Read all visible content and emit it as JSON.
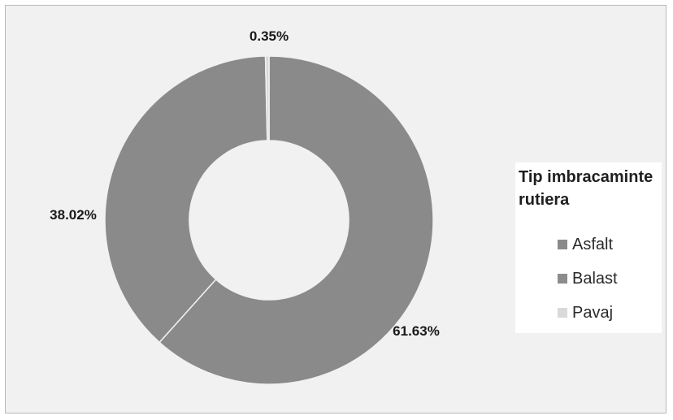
{
  "chart_data": {
    "type": "pie",
    "donut": true,
    "legend_title": "Tip imbracaminte\nrutiera",
    "legend_position": "right",
    "categories": [
      "Asfalt",
      "Balast",
      "Pavaj"
    ],
    "values": [
      61.63,
      38.02,
      0.35
    ],
    "data_labels": [
      "61.63%",
      "38.02%",
      "0.35%"
    ],
    "colors": [
      "#8a8a8a",
      "#8a8a8a",
      "#d9d9d9"
    ],
    "swatch_colors": [
      "#8a8a8a",
      "#8c8c8c",
      "#d9d9d9"
    ]
  }
}
